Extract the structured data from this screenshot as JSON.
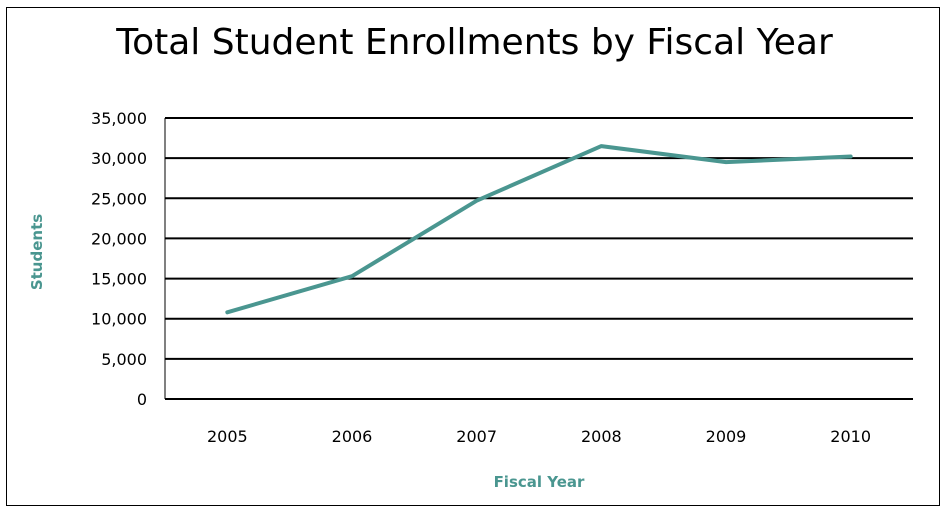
{
  "chart_data": {
    "type": "line",
    "title": "Total Student Enrollments by Fiscal Year",
    "xlabel": "Fiscal Year",
    "ylabel": "Students",
    "categories": [
      "2005",
      "2006",
      "2007",
      "2008",
      "2009",
      "2010"
    ],
    "series": [
      {
        "values": [
          10800,
          15300,
          24700,
          31500,
          29500,
          30200
        ]
      }
    ],
    "ylim": [
      0,
      35000
    ],
    "yticks": [
      0,
      5000,
      10000,
      15000,
      20000,
      25000,
      30000,
      35000
    ],
    "ytick_labels": [
      "0",
      "5,000",
      "10,000",
      "15,000",
      "20,000",
      "25,000",
      "30,000",
      "35,000"
    ],
    "grid": "horizontal",
    "legend": "none",
    "colors": {
      "line": "#4a9690",
      "axis_title": "#4a9690",
      "gridline": "#000000"
    }
  }
}
